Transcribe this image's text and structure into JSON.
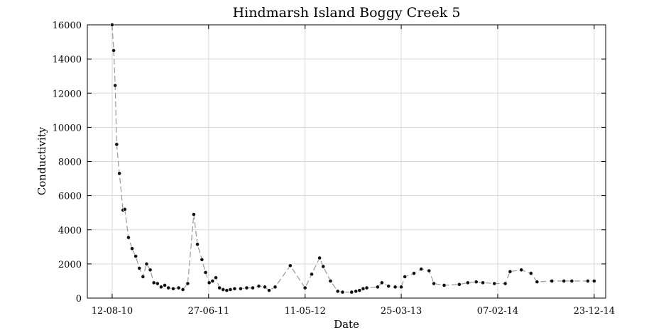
{
  "chart_data": {
    "type": "line",
    "title": "Hindmarsh Island Boggy Creek 5",
    "xlabel": "Date",
    "ylabel": "Conductivity",
    "xlim": [
      "2010-05-22",
      "2015-01-30"
    ],
    "ylim": [
      0,
      16000
    ],
    "grid": true,
    "x_ticks": [
      "2010-08-12",
      "2011-06-27",
      "2012-05-11",
      "2013-03-25",
      "2014-02-07",
      "2014-12-23"
    ],
    "x_tick_labels": [
      "12-08-10",
      "27-06-11",
      "11-05-12",
      "25-03-13",
      "07-02-14",
      "23-12-14"
    ],
    "y_ticks": [
      0,
      2000,
      4000,
      6000,
      8000,
      10000,
      12000,
      14000,
      16000
    ],
    "y_tick_labels": [
      "0",
      "2000",
      "4000",
      "6000",
      "8000",
      "10000",
      "12000",
      "14000",
      "16000"
    ],
    "series": [
      {
        "x": [
          "2010-08-12",
          "2010-08-17",
          "2010-08-22",
          "2010-08-27",
          "2010-09-05",
          "2010-09-17",
          "2010-09-23",
          "2010-10-05",
          "2010-10-17",
          "2010-10-29",
          "2010-11-10",
          "2010-11-22",
          "2010-12-04",
          "2010-12-16",
          "2010-12-28",
          "2011-01-09",
          "2011-01-21",
          "2011-02-02",
          "2011-02-14",
          "2011-03-02",
          "2011-03-20",
          "2011-04-03",
          "2011-04-19",
          "2011-05-09",
          "2011-05-21",
          "2011-06-05",
          "2011-06-17",
          "2011-06-29",
          "2011-07-10",
          "2011-07-21",
          "2011-08-02",
          "2011-08-14",
          "2011-08-26",
          "2011-09-07",
          "2011-09-21",
          "2011-10-11",
          "2011-10-31",
          "2011-11-20",
          "2011-12-10",
          "2011-12-30",
          "2012-01-13",
          "2012-02-02",
          "2012-03-23",
          "2012-05-11",
          "2012-06-02",
          "2012-06-28",
          "2012-07-10",
          "2012-08-03",
          "2012-08-27",
          "2012-09-12",
          "2012-10-12",
          "2012-10-26",
          "2012-11-07",
          "2012-11-19",
          "2012-12-01",
          "2013-01-06",
          "2013-01-20",
          "2013-02-11",
          "2013-03-05",
          "2013-03-25",
          "2013-04-06",
          "2013-05-06",
          "2013-05-30",
          "2013-06-25",
          "2013-07-11",
          "2013-08-14",
          "2013-10-03",
          "2013-10-31",
          "2013-11-28",
          "2013-12-20",
          "2014-01-27",
          "2014-03-04",
          "2014-03-20",
          "2014-04-26",
          "2014-05-28",
          "2014-06-17",
          "2014-08-05",
          "2014-09-14",
          "2014-10-10",
          "2014-12-02",
          "2014-12-23"
        ],
        "y": [
          16000,
          14500,
          12450,
          9000,
          7300,
          5150,
          5200,
          3550,
          2900,
          2450,
          1750,
          1250,
          2000,
          1650,
          900,
          850,
          650,
          750,
          600,
          550,
          600,
          500,
          850,
          4900,
          3150,
          2250,
          1500,
          900,
          1000,
          1200,
          600,
          500,
          450,
          500,
          550,
          550,
          600,
          600,
          700,
          650,
          450,
          650,
          1900,
          600,
          1400,
          2350,
          1850,
          1000,
          400,
          350,
          350,
          400,
          450,
          550,
          600,
          650,
          900,
          700,
          650,
          650,
          1250,
          1450,
          1700,
          1600,
          850,
          750,
          800,
          900,
          950,
          900,
          850,
          850,
          1550,
          1650,
          1450,
          950,
          1000,
          1000,
          1000,
          1000,
          1000
        ]
      }
    ]
  }
}
